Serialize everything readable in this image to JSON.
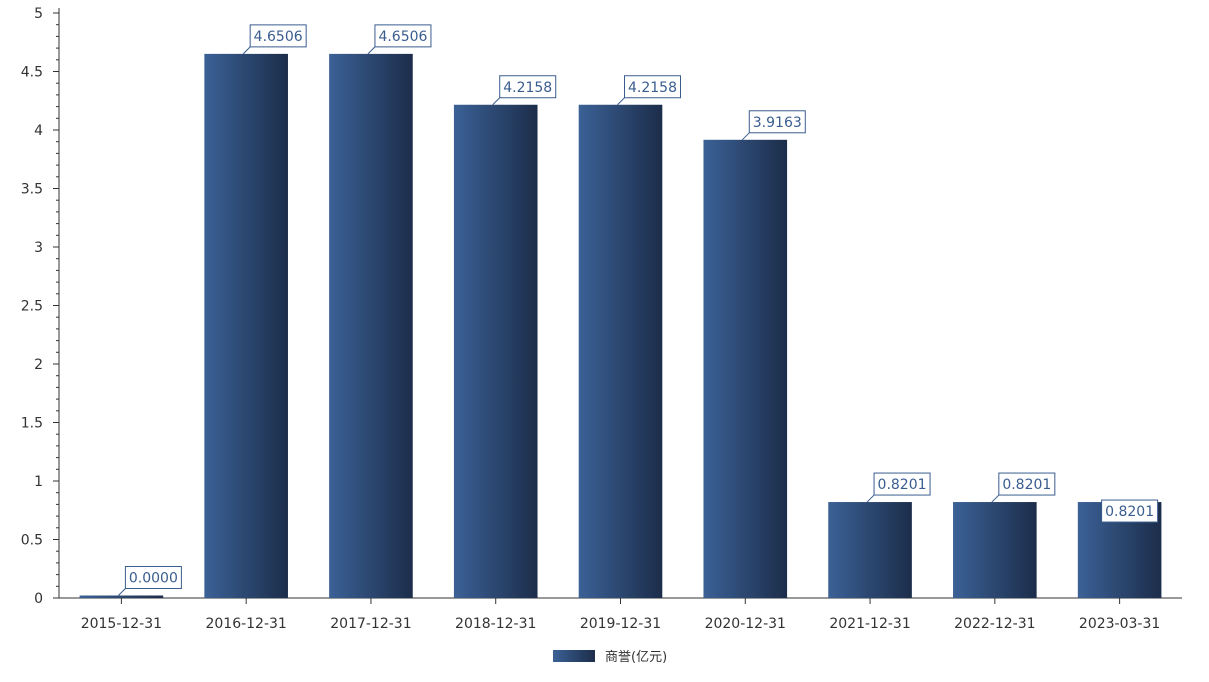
{
  "chart_data": {
    "type": "bar",
    "categories": [
      "2015-12-31",
      "2016-12-31",
      "2017-12-31",
      "2018-12-31",
      "2019-12-31",
      "2020-12-31",
      "2021-12-31",
      "2022-12-31",
      "2023-03-31"
    ],
    "series": [
      {
        "name": "商誉(亿元)",
        "values": [
          0.0,
          4.6506,
          4.6506,
          4.2158,
          4.2158,
          3.9163,
          0.8201,
          0.8201,
          0.8201
        ],
        "data_labels": [
          "0.0000",
          "4.6506",
          "4.6506",
          "4.2158",
          "4.2158",
          "3.9163",
          "0.8201",
          "0.8201",
          "0.8201"
        ]
      }
    ],
    "y_ticks": [
      "0",
      "0.5",
      "1",
      "1.5",
      "2",
      "2.5",
      "3",
      "3.5",
      "4",
      "4.5",
      "5"
    ],
    "ylim": [
      0,
      5
    ],
    "grid": false,
    "legend_position": "bottom-center"
  },
  "colors": {
    "bar_light": "#3b6196",
    "bar_dark": "#1c2d4a",
    "label_border": "#3a5d8f",
    "label_text": "#3a5d8f",
    "axis": "#333333"
  }
}
